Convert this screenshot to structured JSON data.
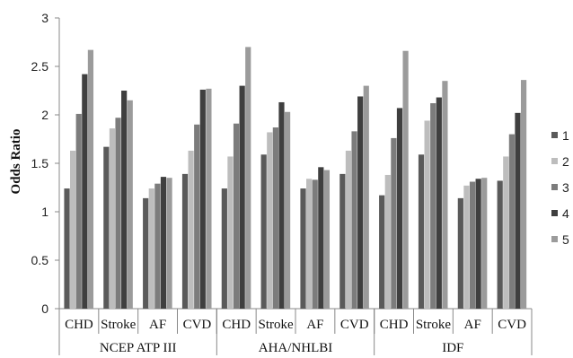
{
  "chart_data": {
    "type": "bar",
    "ylabel": "Odds Ratio",
    "xlabel": "",
    "title": "",
    "ylim": [
      0,
      3
    ],
    "yticks": [
      0,
      0.5,
      1,
      1.5,
      2,
      2.5,
      3
    ],
    "ytick_labels": [
      "0",
      "0.5",
      "1",
      "1.5",
      "2",
      "2.5",
      "3"
    ],
    "grid": false,
    "legend_position": "right",
    "groups": [
      "NCEP ATP III",
      "AHA/NHLBI",
      "IDF"
    ],
    "categories": [
      "CHD",
      "Stroke",
      "AF",
      "CVD"
    ],
    "series": [
      {
        "name": "1",
        "color": "#5a5a5a",
        "values": [
          [
            1.24,
            1.67,
            1.14,
            1.39
          ],
          [
            1.24,
            1.59,
            1.24,
            1.39
          ],
          [
            1.17,
            1.59,
            1.14,
            1.32
          ]
        ]
      },
      {
        "name": "2",
        "color": "#bdbdbd",
        "values": [
          [
            1.63,
            1.86,
            1.24,
            1.63
          ],
          [
            1.57,
            1.82,
            1.34,
            1.63
          ],
          [
            1.38,
            1.94,
            1.27,
            1.57
          ]
        ]
      },
      {
        "name": "3",
        "color": "#7c7c7c",
        "values": [
          [
            2.01,
            1.97,
            1.29,
            1.9
          ],
          [
            1.91,
            1.87,
            1.33,
            1.83
          ],
          [
            1.76,
            2.12,
            1.31,
            1.8
          ]
        ]
      },
      {
        "name": "4",
        "color": "#3f3f3f",
        "values": [
          [
            2.42,
            2.25,
            1.36,
            2.26
          ],
          [
            2.3,
            2.13,
            1.46,
            2.19
          ],
          [
            2.07,
            2.18,
            1.34,
            2.02
          ]
        ]
      },
      {
        "name": "5",
        "color": "#9b9b9b",
        "values": [
          [
            2.67,
            2.15,
            1.35,
            2.27
          ],
          [
            2.7,
            2.03,
            1.43,
            2.3
          ],
          [
            2.66,
            2.35,
            1.35,
            2.36
          ]
        ]
      }
    ]
  }
}
